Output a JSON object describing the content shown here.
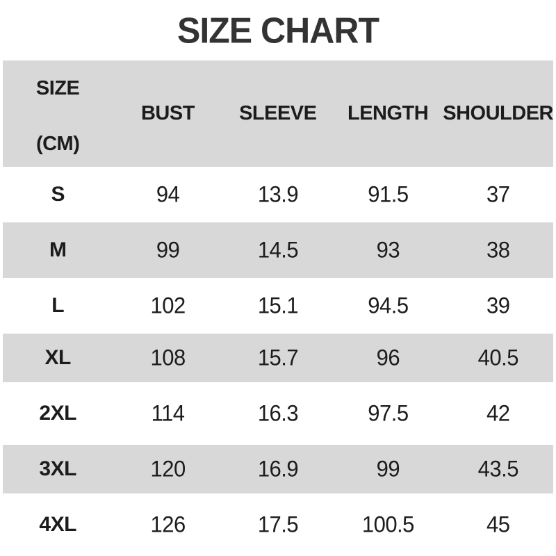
{
  "title": "SIZE CHART",
  "colors": {
    "row_alt_gray": "#d8d8d8",
    "row_white": "#ffffff",
    "title_text": "#333333",
    "body_text": "#1c1c1c"
  },
  "table": {
    "header": {
      "size_label": "SIZE",
      "size_unit": "(CM)",
      "columns": [
        "BUST",
        "SLEEVE",
        "LENGTH",
        "SHOULDER"
      ]
    },
    "rows": [
      {
        "size": "S",
        "bust": "94",
        "sleeve": "13.9",
        "length": "91.5",
        "shoulder": "37"
      },
      {
        "size": "M",
        "bust": "99",
        "sleeve": "14.5",
        "length": "93",
        "shoulder": "38"
      },
      {
        "size": "L",
        "bust": "102",
        "sleeve": "15.1",
        "length": "94.5",
        "shoulder": "39"
      },
      {
        "size": "XL",
        "bust": "108",
        "sleeve": "15.7",
        "length": "96",
        "shoulder": "40.5"
      },
      {
        "size": "2XL",
        "bust": "114",
        "sleeve": "16.3",
        "length": "97.5",
        "shoulder": "42"
      },
      {
        "size": "3XL",
        "bust": "120",
        "sleeve": "16.9",
        "length": "99",
        "shoulder": "43.5"
      },
      {
        "size": "4XL",
        "bust": "126",
        "sleeve": "17.5",
        "length": "100.5",
        "shoulder": "45"
      }
    ]
  },
  "chart_data": {
    "type": "table",
    "title": "SIZE CHART",
    "columns": [
      "SIZE (CM)",
      "BUST",
      "SLEEVE",
      "LENGTH",
      "SHOULDER"
    ],
    "rows": [
      [
        "S",
        94,
        13.9,
        91.5,
        37
      ],
      [
        "M",
        99,
        14.5,
        93,
        38
      ],
      [
        "L",
        102,
        15.1,
        94.5,
        39
      ],
      [
        "XL",
        108,
        15.7,
        96,
        40.5
      ],
      [
        "2XL",
        114,
        16.3,
        97.5,
        42
      ],
      [
        "3XL",
        120,
        16.9,
        99,
        43.5
      ],
      [
        "4XL",
        126,
        17.5,
        100.5,
        45
      ]
    ],
    "layout": {
      "alternating_row_shading": true,
      "grid": false,
      "units": "cm"
    }
  }
}
